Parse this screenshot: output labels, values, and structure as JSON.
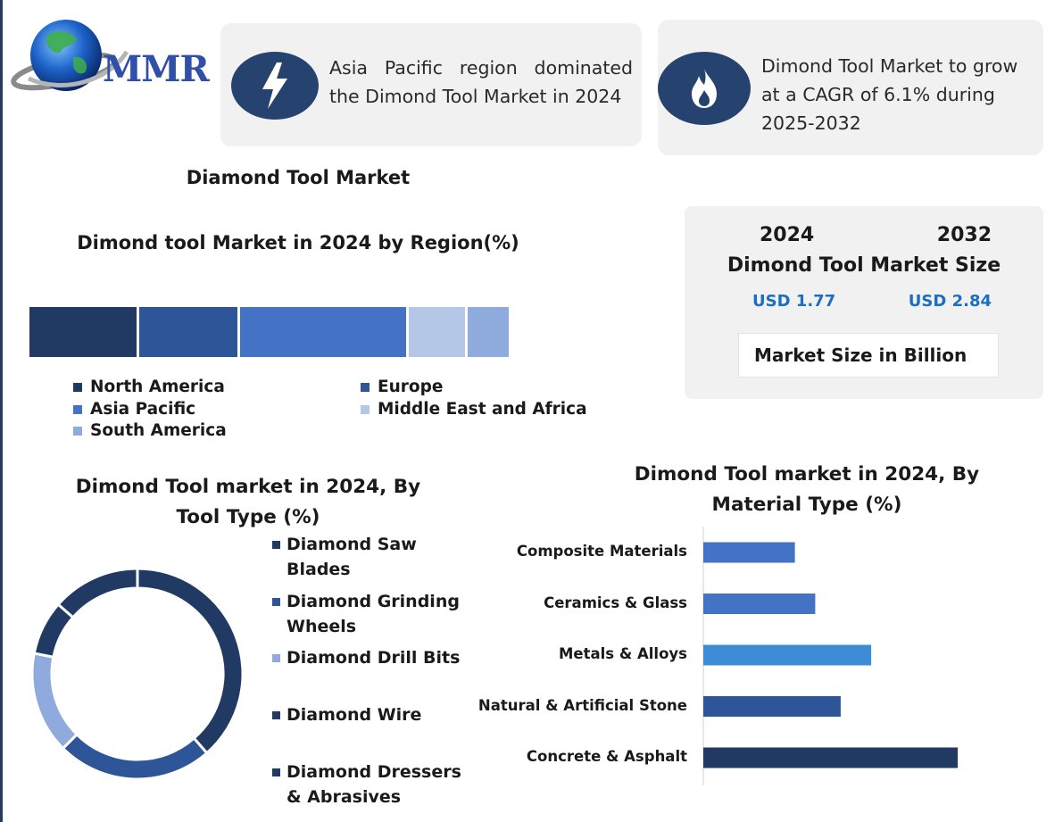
{
  "logo": {
    "text": "MMR",
    "icon": "globe-icon"
  },
  "cards": [
    {
      "icon": "lightning-bolt-icon",
      "text": "Asia Pacific region dominated the Dimond Tool Market in 2024"
    },
    {
      "icon": "flame-icon",
      "text": "Dimond Tool Market to grow at a CAGR of 6.1% during 2025-2032"
    }
  ],
  "main_title": "Diamond Tool Market",
  "market_size": {
    "year_1": "2024",
    "year_2": "2032",
    "heading": "Dimond Tool Market Size",
    "value_1": "USD 1.77",
    "value_2": "USD 2.84",
    "unit": "Market Size in Billion"
  },
  "colors": {
    "navy": "#213a63",
    "mid_blue": "#2e5597",
    "bright_blue": "#4472c4",
    "light_blue": "#b4c7e7",
    "periwinkle": "#8faadc",
    "sky_blue": "#3c8dd6"
  },
  "chart_data": [
    {
      "type": "bar",
      "orientation": "horizontal-stacked",
      "title": "Dimond tool Market in 2024 by Region(%)",
      "series": [
        {
          "name": "North America",
          "value": 22.5,
          "color": "#213a63"
        },
        {
          "name": "Europe",
          "value": 20.5,
          "color": "#2e5597"
        },
        {
          "name": "Asia Pacific",
          "value": 34.5,
          "color": "#4472c4"
        },
        {
          "name": "Middle East and Africa",
          "value": 12,
          "color": "#b4c7e7"
        },
        {
          "name": "South America",
          "value": 9,
          "color": "#8faadc"
        }
      ],
      "legend_placement": "bottom"
    },
    {
      "type": "pie",
      "variant": "donut",
      "title": "Dimond Tool market in 2024, By Tool Type (%)",
      "start_angle_deg": 0,
      "slices": [
        {
          "name": "Diamond Saw Blades",
          "value": 37,
          "color": "#213a63"
        },
        {
          "name": "Diamond Grinding Wheels",
          "value": 23,
          "color": "#2e5597"
        },
        {
          "name": "Diamond Drill Bits",
          "value": 15,
          "color": "#8faadc"
        },
        {
          "name": "Diamond Wire",
          "value": 8,
          "color": "#213a63"
        },
        {
          "name": "Diamond Dressers & Abrasives",
          "value": 13,
          "color": "#213a63"
        }
      ],
      "legend_placement": "right"
    },
    {
      "type": "bar",
      "orientation": "horizontal",
      "title": "Dimond Tool market in 2024, By Material Type (%)",
      "categories": [
        "Composite Materials",
        "Ceramics & Glass",
        "Metals & Alloys",
        "Natural & Artificial Stone",
        "Concrete & Asphalt"
      ],
      "values": [
        9,
        11,
        16.5,
        13.5,
        25
      ],
      "colors": [
        "#4472c4",
        "#4472c4",
        "#3c8dd6",
        "#2e5597",
        "#213a63"
      ],
      "xlim": [
        0,
        30
      ],
      "xlabel": "",
      "ylabel": ""
    }
  ]
}
